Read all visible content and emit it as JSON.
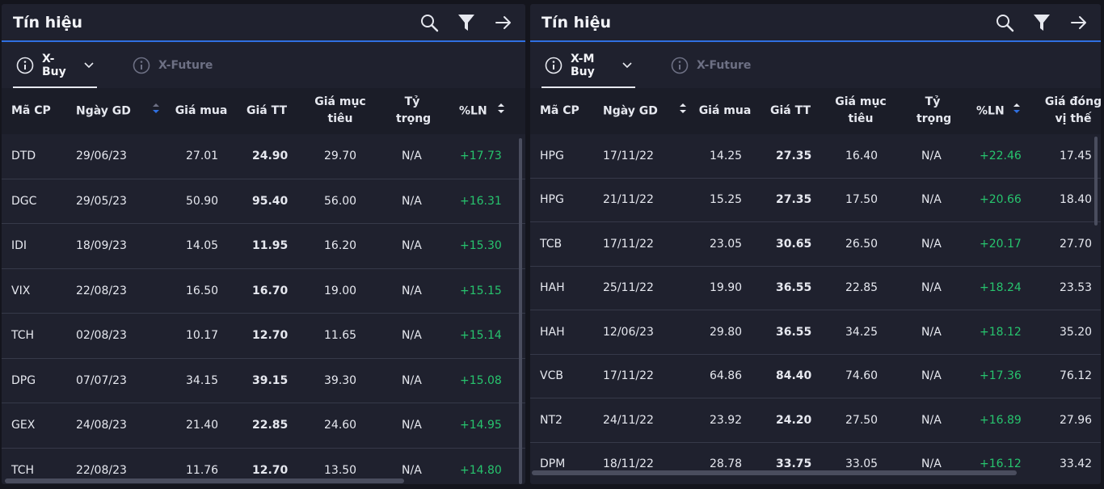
{
  "left": {
    "title": "Tín hiệu",
    "icons": [
      "search-icon",
      "filter-icon",
      "arrow-right-icon"
    ],
    "tabs": [
      {
        "label": "X-Buy",
        "active": true
      },
      {
        "label": "X-Future",
        "active": false
      }
    ],
    "columns": [
      "Mã CP",
      "Ngày GD",
      "Giá mua",
      "Giá TT",
      "Giá mục tiêu",
      "Tỷ trọng",
      "%LN"
    ],
    "rows": [
      [
        "DTD",
        "29/06/23",
        "27.01",
        "24.90",
        "29.70",
        "N/A",
        "+17.73"
      ],
      [
        "DGC",
        "29/05/23",
        "50.90",
        "95.40",
        "56.00",
        "N/A",
        "+16.31"
      ],
      [
        "IDI",
        "18/09/23",
        "14.05",
        "11.95",
        "16.20",
        "N/A",
        "+15.30"
      ],
      [
        "VIX",
        "22/08/23",
        "16.50",
        "16.70",
        "19.00",
        "N/A",
        "+15.15"
      ],
      [
        "TCH",
        "02/08/23",
        "10.17",
        "12.70",
        "11.65",
        "N/A",
        "+15.14"
      ],
      [
        "DPG",
        "07/07/23",
        "34.15",
        "39.15",
        "39.30",
        "N/A",
        "+15.08"
      ],
      [
        "GEX",
        "24/08/23",
        "21.40",
        "22.85",
        "24.60",
        "N/A",
        "+14.95"
      ],
      [
        "TCH",
        "22/08/23",
        "11.76",
        "12.70",
        "13.50",
        "N/A",
        "+14.80"
      ]
    ]
  },
  "right": {
    "title": "Tín hiệu",
    "icons": [
      "search-icon",
      "filter-icon",
      "arrow-right-icon"
    ],
    "tabs": [
      {
        "label": "X-M Buy",
        "active": true
      },
      {
        "label": "X-Future",
        "active": false
      }
    ],
    "columns": [
      "Mã CP",
      "Ngày GD",
      "Giá mua",
      "Giá TT",
      "Giá mục tiêu",
      "Tỷ trọng",
      "%LN",
      "Giá đóng vị thế"
    ],
    "rows": [
      [
        "HPG",
        "17/11/22",
        "14.25",
        "27.35",
        "16.40",
        "N/A",
        "+22.46",
        "17.45"
      ],
      [
        "HPG",
        "21/11/22",
        "15.25",
        "27.35",
        "17.50",
        "N/A",
        "+20.66",
        "18.40"
      ],
      [
        "TCB",
        "17/11/22",
        "23.05",
        "30.65",
        "26.50",
        "N/A",
        "+20.17",
        "27.70"
      ],
      [
        "HAH",
        "25/11/22",
        "19.90",
        "36.55",
        "22.85",
        "N/A",
        "+18.24",
        "23.53"
      ],
      [
        "HAH",
        "12/06/23",
        "29.80",
        "36.55",
        "34.25",
        "N/A",
        "+18.12",
        "35.20"
      ],
      [
        "VCB",
        "17/11/22",
        "64.86",
        "84.40",
        "74.60",
        "N/A",
        "+17.36",
        "76.12"
      ],
      [
        "NT2",
        "24/11/22",
        "23.92",
        "24.20",
        "27.50",
        "N/A",
        "+16.89",
        "27.96"
      ],
      [
        "DPM",
        "18/11/22",
        "28.78",
        "33.75",
        "33.05",
        "N/A",
        "+16.12",
        "33.42"
      ]
    ]
  },
  "colors": {
    "positive": "#27c46e",
    "sort_active": "#2f6fe0",
    "accent_line": "#2f6fe0"
  }
}
